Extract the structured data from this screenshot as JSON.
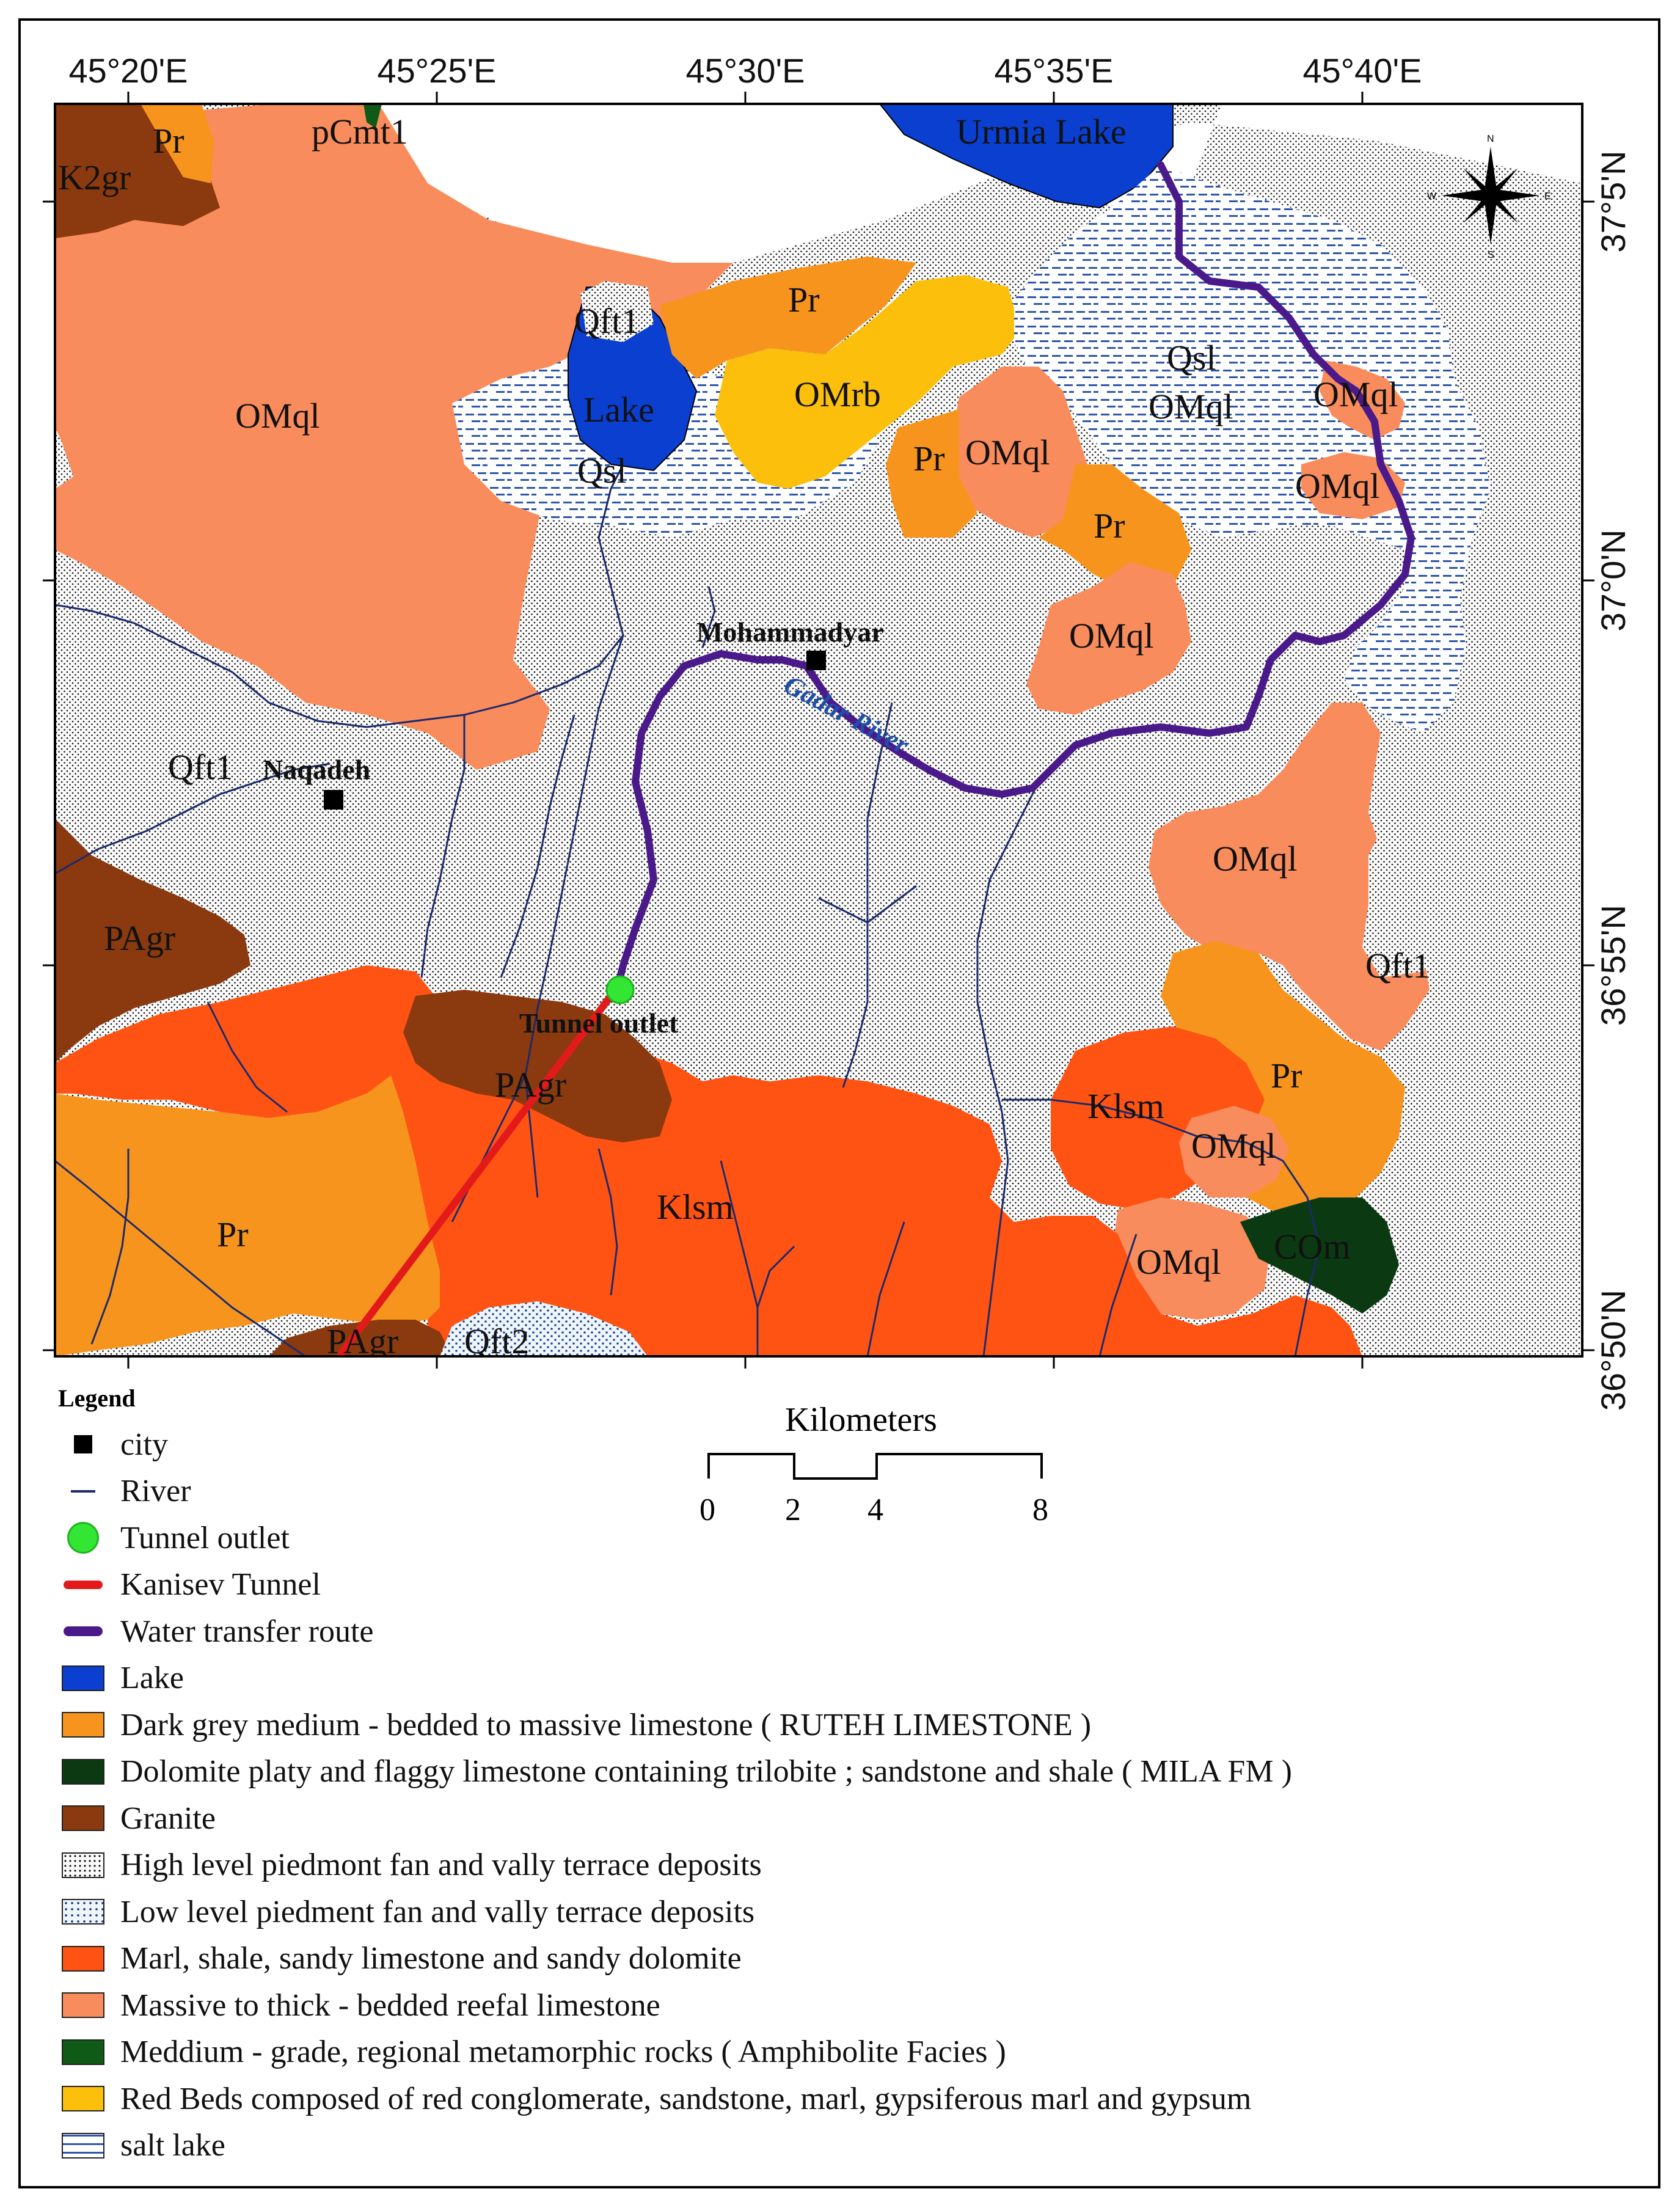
{
  "map": {
    "top_lon_labels": [
      "45°20'E",
      "45°25'E",
      "45°30'E",
      "45°35'E",
      "45°40'E"
    ],
    "right_lat_labels": [
      "37°5'N",
      "37°0'N",
      "36°55'N",
      "36°50'N"
    ],
    "north_arrow": {
      "n": "N",
      "s": "S",
      "e": "E",
      "w": "W"
    },
    "unit_labels": [
      {
        "text": "K2gr",
        "color": "#111"
      },
      {
        "text": "Pr",
        "color": "#111"
      },
      {
        "text": "pCmt1",
        "color": "#111"
      },
      {
        "text": "Urmia Lake",
        "color": "#111"
      },
      {
        "text": "OMql",
        "color": "#111"
      },
      {
        "text": "Qft1",
        "color": "#111"
      },
      {
        "text": "Pr",
        "color": "#111"
      },
      {
        "text": "Lake",
        "color": "#111"
      },
      {
        "text": "OMrb",
        "color": "#111"
      },
      {
        "text": "Qsl",
        "color": "#111"
      },
      {
        "text": "OMql",
        "color": "#111"
      },
      {
        "text": "OMql",
        "color": "#111"
      },
      {
        "text": "Pr",
        "color": "#111"
      },
      {
        "text": "OMql",
        "color": "#111"
      },
      {
        "text": "Qsl",
        "color": "#111"
      },
      {
        "text": "OMql",
        "color": "#111"
      },
      {
        "text": "Pr",
        "color": "#111"
      },
      {
        "text": "OMql",
        "color": "#111"
      },
      {
        "text": "Qft1",
        "color": "#111"
      },
      {
        "text": "OMql",
        "color": "#111"
      },
      {
        "text": "PAgr",
        "color": "#111"
      },
      {
        "text": "Qft1",
        "color": "#111"
      },
      {
        "text": "PAgr",
        "color": "#111"
      },
      {
        "text": "Klsm",
        "color": "#111"
      },
      {
        "text": "Pr",
        "color": "#111"
      },
      {
        "text": "Klsm",
        "color": "#111"
      },
      {
        "text": "OMql",
        "color": "#111"
      },
      {
        "text": "Pr",
        "color": "#111"
      },
      {
        "text": "OMql",
        "color": "#111"
      },
      {
        "text": "COm",
        "color": "#111"
      },
      {
        "text": "PAgr",
        "color": "#111"
      },
      {
        "text": "Qft2",
        "color": "#111"
      }
    ],
    "cities": [
      "Mohammadyar",
      "Naqadeh"
    ],
    "river_name": "Gadar River",
    "tunnel_outlet_label": "Tunnel outlet"
  },
  "scale_bar": {
    "title": "Kilometers",
    "ticks": [
      "0",
      "2",
      "4",
      "8"
    ]
  },
  "legend": {
    "title": "Legend",
    "items": [
      {
        "label": "city",
        "symbol": "city"
      },
      {
        "label": "River",
        "symbol": "river"
      },
      {
        "label": "Tunnel outlet",
        "symbol": "tunnel-outlet"
      },
      {
        "label": "Kanisev Tunnel",
        "symbol": "tunnel"
      },
      {
        "label": "Water transfer route",
        "symbol": "route"
      },
      {
        "label": "Lake",
        "symbol": "fill",
        "color": "#0a3fd0"
      },
      {
        "label": "Dark grey medium - bedded to massive limestone ( RUTEH LIMESTONE )",
        "symbol": "fill",
        "color": "#f7941d"
      },
      {
        "label": "Dolomite platy and flaggy limestone containing trilobite ; sandstone and shale ( MILA FM )",
        "symbol": "fill",
        "color": "#0b3a12"
      },
      {
        "label": "Granite",
        "symbol": "fill",
        "color": "#8a3a0e"
      },
      {
        "label": "High level piedmont fan and vally terrace deposits",
        "symbol": "dots-high"
      },
      {
        "label": "Low level piedment fan and vally terrace deposits",
        "symbol": "dots-low"
      },
      {
        "label": "Marl, shale, sandy limestone and sandy dolomite",
        "symbol": "fill",
        "color": "#ff5314"
      },
      {
        "label": "Massive to thick - bedded reefal limestone",
        "symbol": "fill",
        "color": "#f98c5c"
      },
      {
        "label": "Meddium - grade, regional metamorphic rocks ( Amphibolite Facies )",
        "symbol": "fill",
        "color": "#0f5a16"
      },
      {
        "label": "Red Beds composed of red conglomerate, sandstone, marl, gypsiferous marl and gypsum",
        "symbol": "fill",
        "color": "#fbbf0c"
      },
      {
        "label": "salt lake",
        "symbol": "salt"
      }
    ]
  }
}
